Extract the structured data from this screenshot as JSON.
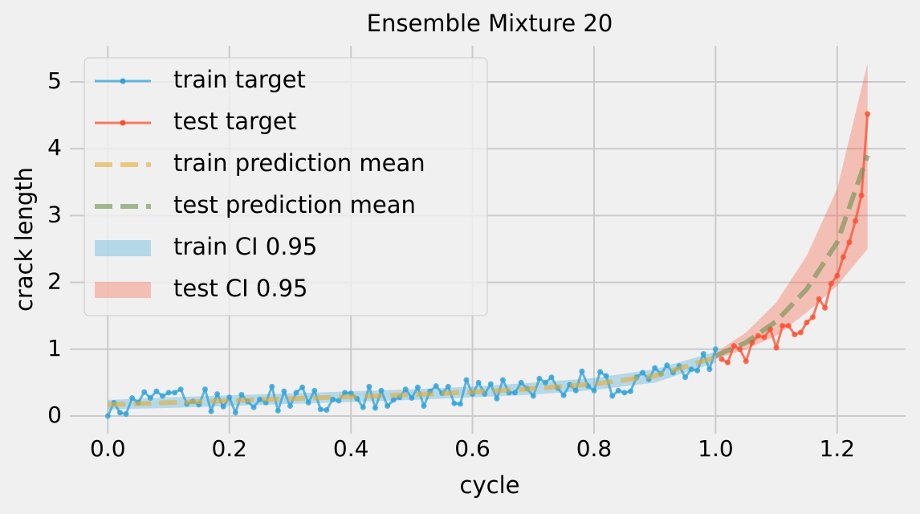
{
  "chart_data": {
    "type": "line",
    "title": "Ensemble Mixture 20",
    "x_label": "cycle",
    "y_label": "crack length",
    "xlim": [
      -0.0625,
      1.3125
    ],
    "ylim": [
      -0.264,
      5.54
    ],
    "xticks": [
      {
        "value": 0,
        "label": "0.0"
      },
      0.2,
      0.4,
      0.6,
      0.8,
      {
        "value": 1,
        "label": "1.0"
      },
      1.2
    ],
    "yticks": [
      0,
      1,
      2,
      3,
      4,
      5
    ],
    "grid": true,
    "legend": "upper left",
    "series": [
      {
        "name": "train target",
        "color": "#30a2da",
        "style": "marker",
        "x": [
          0,
          0.01,
          0.02,
          0.03,
          0.04,
          0.05,
          0.06,
          0.07,
          0.08,
          0.09,
          0.1,
          0.11,
          0.12,
          0.13,
          0.14,
          0.15,
          0.16,
          0.17,
          0.18,
          0.19,
          0.2,
          0.21,
          0.22,
          0.23,
          0.24,
          0.25,
          0.26,
          0.27,
          0.28,
          0.29,
          0.3,
          0.31,
          0.32,
          0.33,
          0.34,
          0.35,
          0.36,
          0.37,
          0.38,
          0.39,
          0.4,
          0.41,
          0.42,
          0.43,
          0.44,
          0.45,
          0.46,
          0.47,
          0.48,
          0.49,
          0.5,
          0.51,
          0.52,
          0.53,
          0.54,
          0.55,
          0.56,
          0.57,
          0.58,
          0.59,
          0.6,
          0.61,
          0.62,
          0.63,
          0.64,
          0.65,
          0.66,
          0.67,
          0.68,
          0.69,
          0.7,
          0.71,
          0.72,
          0.73,
          0.74,
          0.75,
          0.76,
          0.77,
          0.78,
          0.79,
          0.8,
          0.81,
          0.82,
          0.83,
          0.84,
          0.85,
          0.86,
          0.87,
          0.88,
          0.89,
          0.9,
          0.91,
          0.92,
          0.93,
          0.94,
          0.95,
          0.96,
          0.97,
          0.98,
          0.99,
          1.0
        ],
        "values": [
          0,
          0.2,
          0.05,
          0.03,
          0.27,
          0.2,
          0.36,
          0.27,
          0.37,
          0.3,
          0.35,
          0.35,
          0.4,
          0.18,
          0.22,
          0.17,
          0.4,
          0.07,
          0.33,
          0.14,
          0.28,
          0.05,
          0.32,
          0.22,
          0.13,
          0.25,
          0.2,
          0.44,
          0.08,
          0.37,
          0.15,
          0.35,
          0.43,
          0.2,
          0.38,
          0.1,
          0.09,
          0.25,
          0.23,
          0.35,
          0.34,
          0.26,
          0.13,
          0.44,
          0.12,
          0.38,
          0.15,
          0.24,
          0.28,
          0.4,
          0.27,
          0.43,
          0.15,
          0.37,
          0.45,
          0.34,
          0.44,
          0.19,
          0.18,
          0.54,
          0.33,
          0.5,
          0.33,
          0.48,
          0.26,
          0.54,
          0.35,
          0.35,
          0.5,
          0.41,
          0.3,
          0.56,
          0.5,
          0.58,
          0.42,
          0.31,
          0.47,
          0.38,
          0.67,
          0.45,
          0.38,
          0.66,
          0.6,
          0.3,
          0.38,
          0.35,
          0.37,
          0.58,
          0.65,
          0.55,
          0.72,
          0.63,
          0.76,
          0.65,
          0.75,
          0.58,
          0.7,
          0.68,
          0.93,
          0.7,
          1.0
        ]
      },
      {
        "name": "test target",
        "color": "#fc4f30",
        "style": "marker",
        "x": [
          1.01,
          1.02,
          1.03,
          1.04,
          1.05,
          1.06,
          1.07,
          1.08,
          1.09,
          1.1,
          1.11,
          1.12,
          1.13,
          1.14,
          1.15,
          1.16,
          1.17,
          1.18,
          1.19,
          1.2,
          1.21,
          1.22,
          1.23,
          1.24,
          1.25
        ],
        "values": [
          0.85,
          0.8,
          1.05,
          1.0,
          0.82,
          1.1,
          1.2,
          1.18,
          1.3,
          1.02,
          1.35,
          1.35,
          1.22,
          1.25,
          1.4,
          1.48,
          1.75,
          1.62,
          1.98,
          2.1,
          2.38,
          2.6,
          2.92,
          3.3,
          4.52
        ]
      },
      {
        "name": "train prediction mean",
        "color": "#e5ae38",
        "style": "dashed",
        "x": [
          0,
          0.1,
          0.2,
          0.3,
          0.4,
          0.5,
          0.6,
          0.7,
          0.8,
          0.9,
          1.0
        ],
        "values": [
          0.17,
          0.2,
          0.23,
          0.26,
          0.29,
          0.32,
          0.36,
          0.41,
          0.48,
          0.6,
          0.88
        ]
      },
      {
        "name": "test prediction mean",
        "color": "#6d904f",
        "style": "dashed",
        "x": [
          1.0,
          1.05,
          1.1,
          1.15,
          1.2,
          1.25
        ],
        "values": [
          0.9,
          1.1,
          1.42,
          1.9,
          2.6,
          3.9
        ]
      }
    ],
    "bands": [
      {
        "name": "train CI 0.95",
        "color": "#30a2da",
        "x": [
          0,
          0.1,
          0.2,
          0.3,
          0.4,
          0.5,
          0.6,
          0.7,
          0.8,
          0.9,
          1.0
        ],
        "lower": [
          0.1,
          0.12,
          0.15,
          0.18,
          0.21,
          0.24,
          0.28,
          0.32,
          0.39,
          0.5,
          0.8
        ],
        "upper": [
          0.24,
          0.28,
          0.31,
          0.34,
          0.37,
          0.4,
          0.44,
          0.5,
          0.57,
          0.7,
          0.96
        ]
      },
      {
        "name": "test CI 0.95",
        "color": "#fc4f30",
        "x": [
          1.0,
          1.05,
          1.1,
          1.15,
          1.2,
          1.25
        ],
        "lower": [
          0.85,
          1.0,
          1.2,
          1.55,
          1.95,
          2.5
        ],
        "upper": [
          0.95,
          1.25,
          1.7,
          2.4,
          3.4,
          5.28
        ]
      }
    ]
  }
}
